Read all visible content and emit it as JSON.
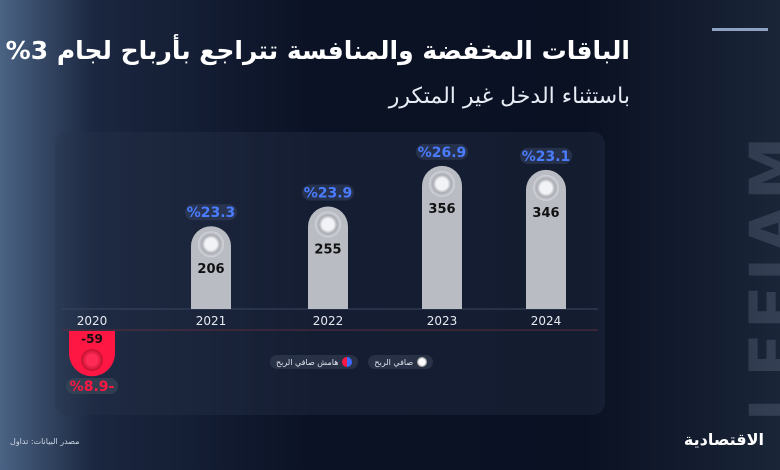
{
  "header": {
    "title": "الباقات المخفضة والمنافسة تتراجع بأرباح لجام 3%",
    "subtitle": "باستثناء الدخل غير المتكرر"
  },
  "legend": {
    "margin_label": "هامش صافي الربح",
    "profit_label": "صافي الربح"
  },
  "footer": {
    "source": "مصدر البيانات: تداول",
    "brand": "الاقتصادية"
  },
  "logo": "LEEJAM",
  "colors": {
    "bar": "#b9bcc3",
    "negative": "#ff1744",
    "margin_text": "#4a7cff",
    "accent_line": "#8fa3c0"
  },
  "chart_data": {
    "type": "bar",
    "title": "الباقات المخفضة والمنافسة تتراجع بأرباح لجام 3%",
    "categories": [
      "2020",
      "2021",
      "2022",
      "2023",
      "2024"
    ],
    "series": [
      {
        "name": "صافي الربح",
        "values": [
          -59,
          206,
          255,
          356,
          346
        ]
      },
      {
        "name": "هامش صافي الربح",
        "values": [
          -8.9,
          23.3,
          23.9,
          26.9,
          23.1
        ],
        "unit": "%"
      }
    ],
    "value_labels": [
      "-59",
      "206",
      "255",
      "356",
      "346"
    ],
    "margin_labels": [
      "%8.9-",
      "%23.3",
      "%23.9",
      "%26.9",
      "%23.1"
    ],
    "legend_position": "bottom"
  }
}
